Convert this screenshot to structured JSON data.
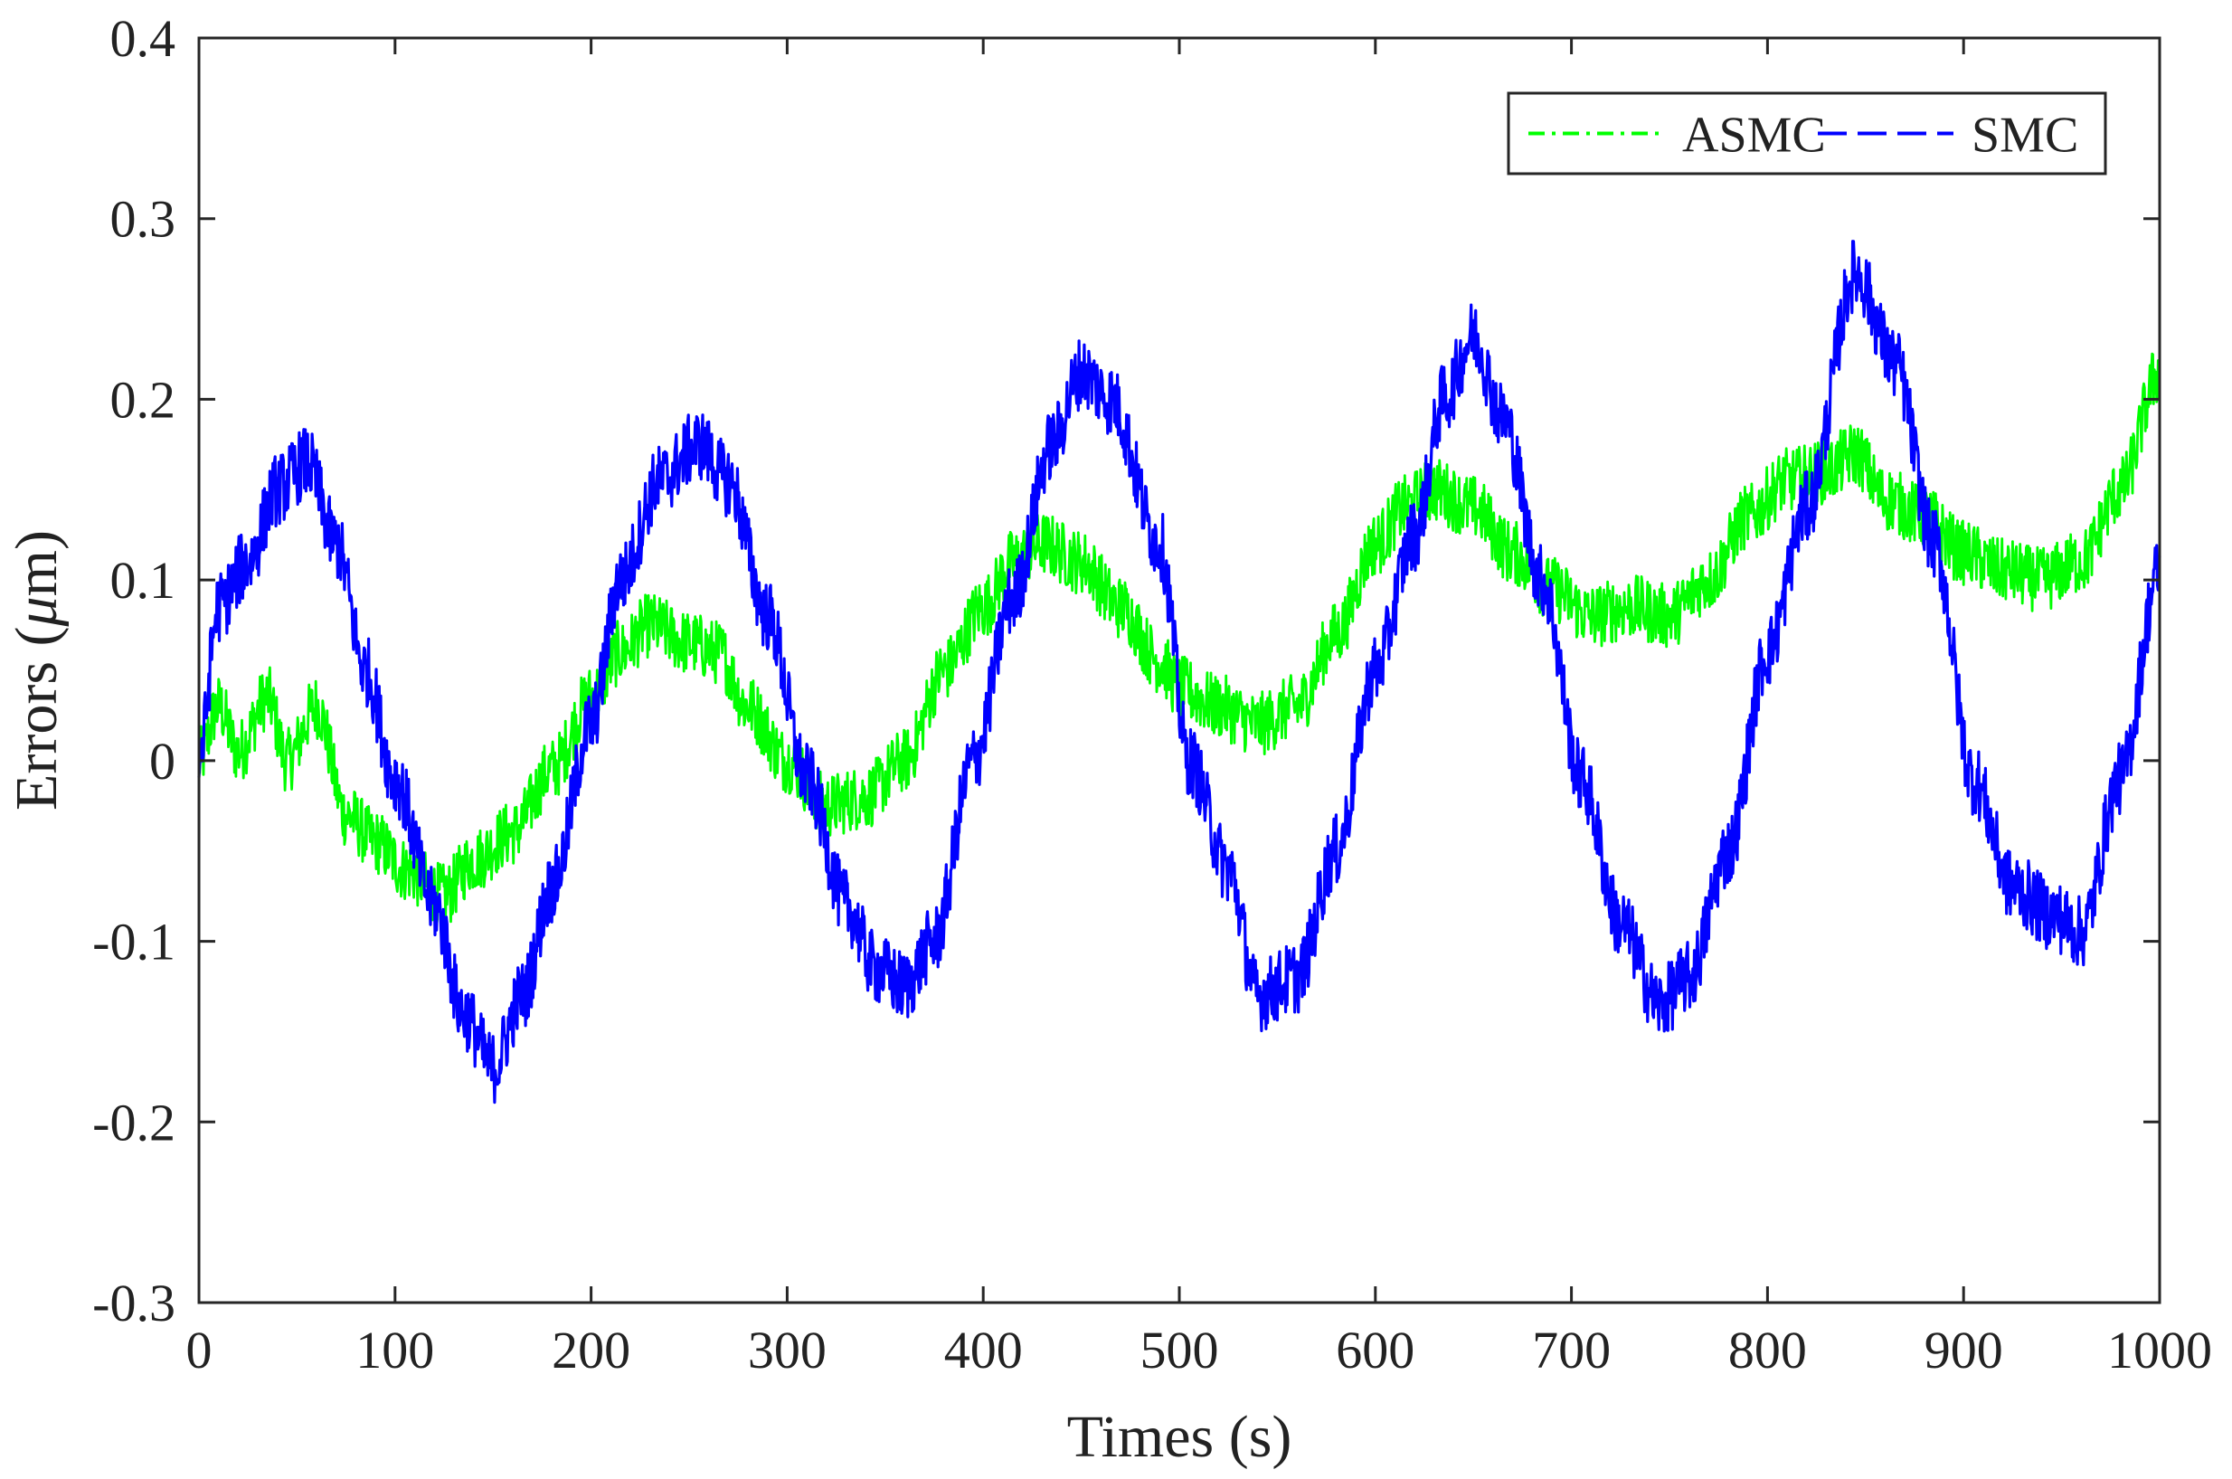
{
  "chart_data": {
    "type": "line",
    "title": "",
    "xlabel": "Times (s)",
    "ylabel_main": "Errors (",
    "ylabel_mu": "μ",
    "ylabel_unit": "m)",
    "xlim": [
      0,
      1000
    ],
    "ylim": [
      -0.3,
      0.4
    ],
    "x_ticks": [
      0,
      100,
      200,
      300,
      400,
      500,
      600,
      700,
      800,
      900,
      1000
    ],
    "x_tick_labels": [
      "0",
      "100",
      "200",
      "300",
      "400",
      "500",
      "600",
      "700",
      "800",
      "900",
      "1000"
    ],
    "y_ticks": [
      -0.3,
      -0.2,
      -0.1,
      0,
      0.1,
      0.2,
      0.3,
      0.4
    ],
    "y_tick_labels": [
      "-0.3",
      "-0.2",
      "-0.1",
      "0",
      "0.1",
      "0.2",
      "0.3",
      "0.4"
    ],
    "grid": false,
    "legend_position": "top-right",
    "series": [
      {
        "name": "ASMC",
        "color": "#00ff00",
        "style": "dash-dot",
        "noise": 0.018,
        "x": [
          0,
          10,
          20,
          35,
          45,
          60,
          75,
          90,
          105,
          125,
          140,
          160,
          180,
          200,
          215,
          230,
          250,
          265,
          280,
          300,
          320,
          340,
          360,
          380,
          400,
          415,
          430,
          450,
          470,
          490,
          500,
          520,
          540,
          560,
          580,
          600,
          615,
          630,
          650,
          670,
          690,
          710,
          730,
          750,
          770,
          790,
          810,
          830,
          845,
          860,
          880,
          900,
          920,
          940,
          960,
          980,
          1000
        ],
        "y": [
          0.0,
          0.03,
          0.005,
          0.035,
          0.0,
          0.03,
          -0.03,
          -0.045,
          -0.06,
          -0.075,
          -0.055,
          -0.04,
          -0.005,
          0.035,
          0.06,
          0.075,
          0.065,
          0.06,
          0.03,
          -0.0,
          -0.025,
          -0.02,
          0.0,
          0.05,
          0.085,
          0.11,
          0.12,
          0.11,
          0.085,
          0.055,
          0.04,
          0.03,
          0.02,
          0.03,
          0.07,
          0.12,
          0.14,
          0.15,
          0.14,
          0.115,
          0.095,
          0.08,
          0.085,
          0.08,
          0.1,
          0.135,
          0.155,
          0.16,
          0.17,
          0.145,
          0.135,
          0.115,
          0.105,
          0.1,
          0.11,
          0.15,
          0.215
        ]
      },
      {
        "name": "SMC",
        "color": "#0000ff",
        "style": "dashed",
        "noise": 0.02,
        "x": [
          0,
          10,
          25,
          40,
          55,
          70,
          85,
          100,
          120,
          135,
          150,
          165,
          180,
          200,
          215,
          235,
          255,
          270,
          290,
          310,
          330,
          345,
          360,
          375,
          395,
          415,
          435,
          450,
          465,
          490,
          505,
          525,
          540,
          560,
          580,
          600,
          620,
          635,
          650,
          665,
          685,
          705,
          725,
          745,
          760,
          780,
          800,
          820,
          845,
          865,
          885,
          905,
          925,
          945,
          960,
          980,
          1000
        ],
        "y": [
          0.0,
          0.085,
          0.11,
          0.15,
          0.165,
          0.12,
          0.05,
          -0.01,
          -0.08,
          -0.14,
          -0.17,
          -0.13,
          -0.07,
          0.02,
          0.1,
          0.155,
          0.175,
          0.155,
          0.08,
          -0.01,
          -0.08,
          -0.115,
          -0.125,
          -0.1,
          0.0,
          0.09,
          0.175,
          0.215,
          0.2,
          0.12,
          0.0,
          -0.06,
          -0.13,
          -0.12,
          -0.05,
          0.05,
          0.125,
          0.2,
          0.235,
          0.19,
          0.1,
          -0.01,
          -0.09,
          -0.135,
          -0.12,
          -0.05,
          0.06,
          0.14,
          0.27,
          0.22,
          0.12,
          -0.01,
          -0.07,
          -0.085,
          -0.095,
          -0.01,
          0.105
        ]
      }
    ]
  }
}
